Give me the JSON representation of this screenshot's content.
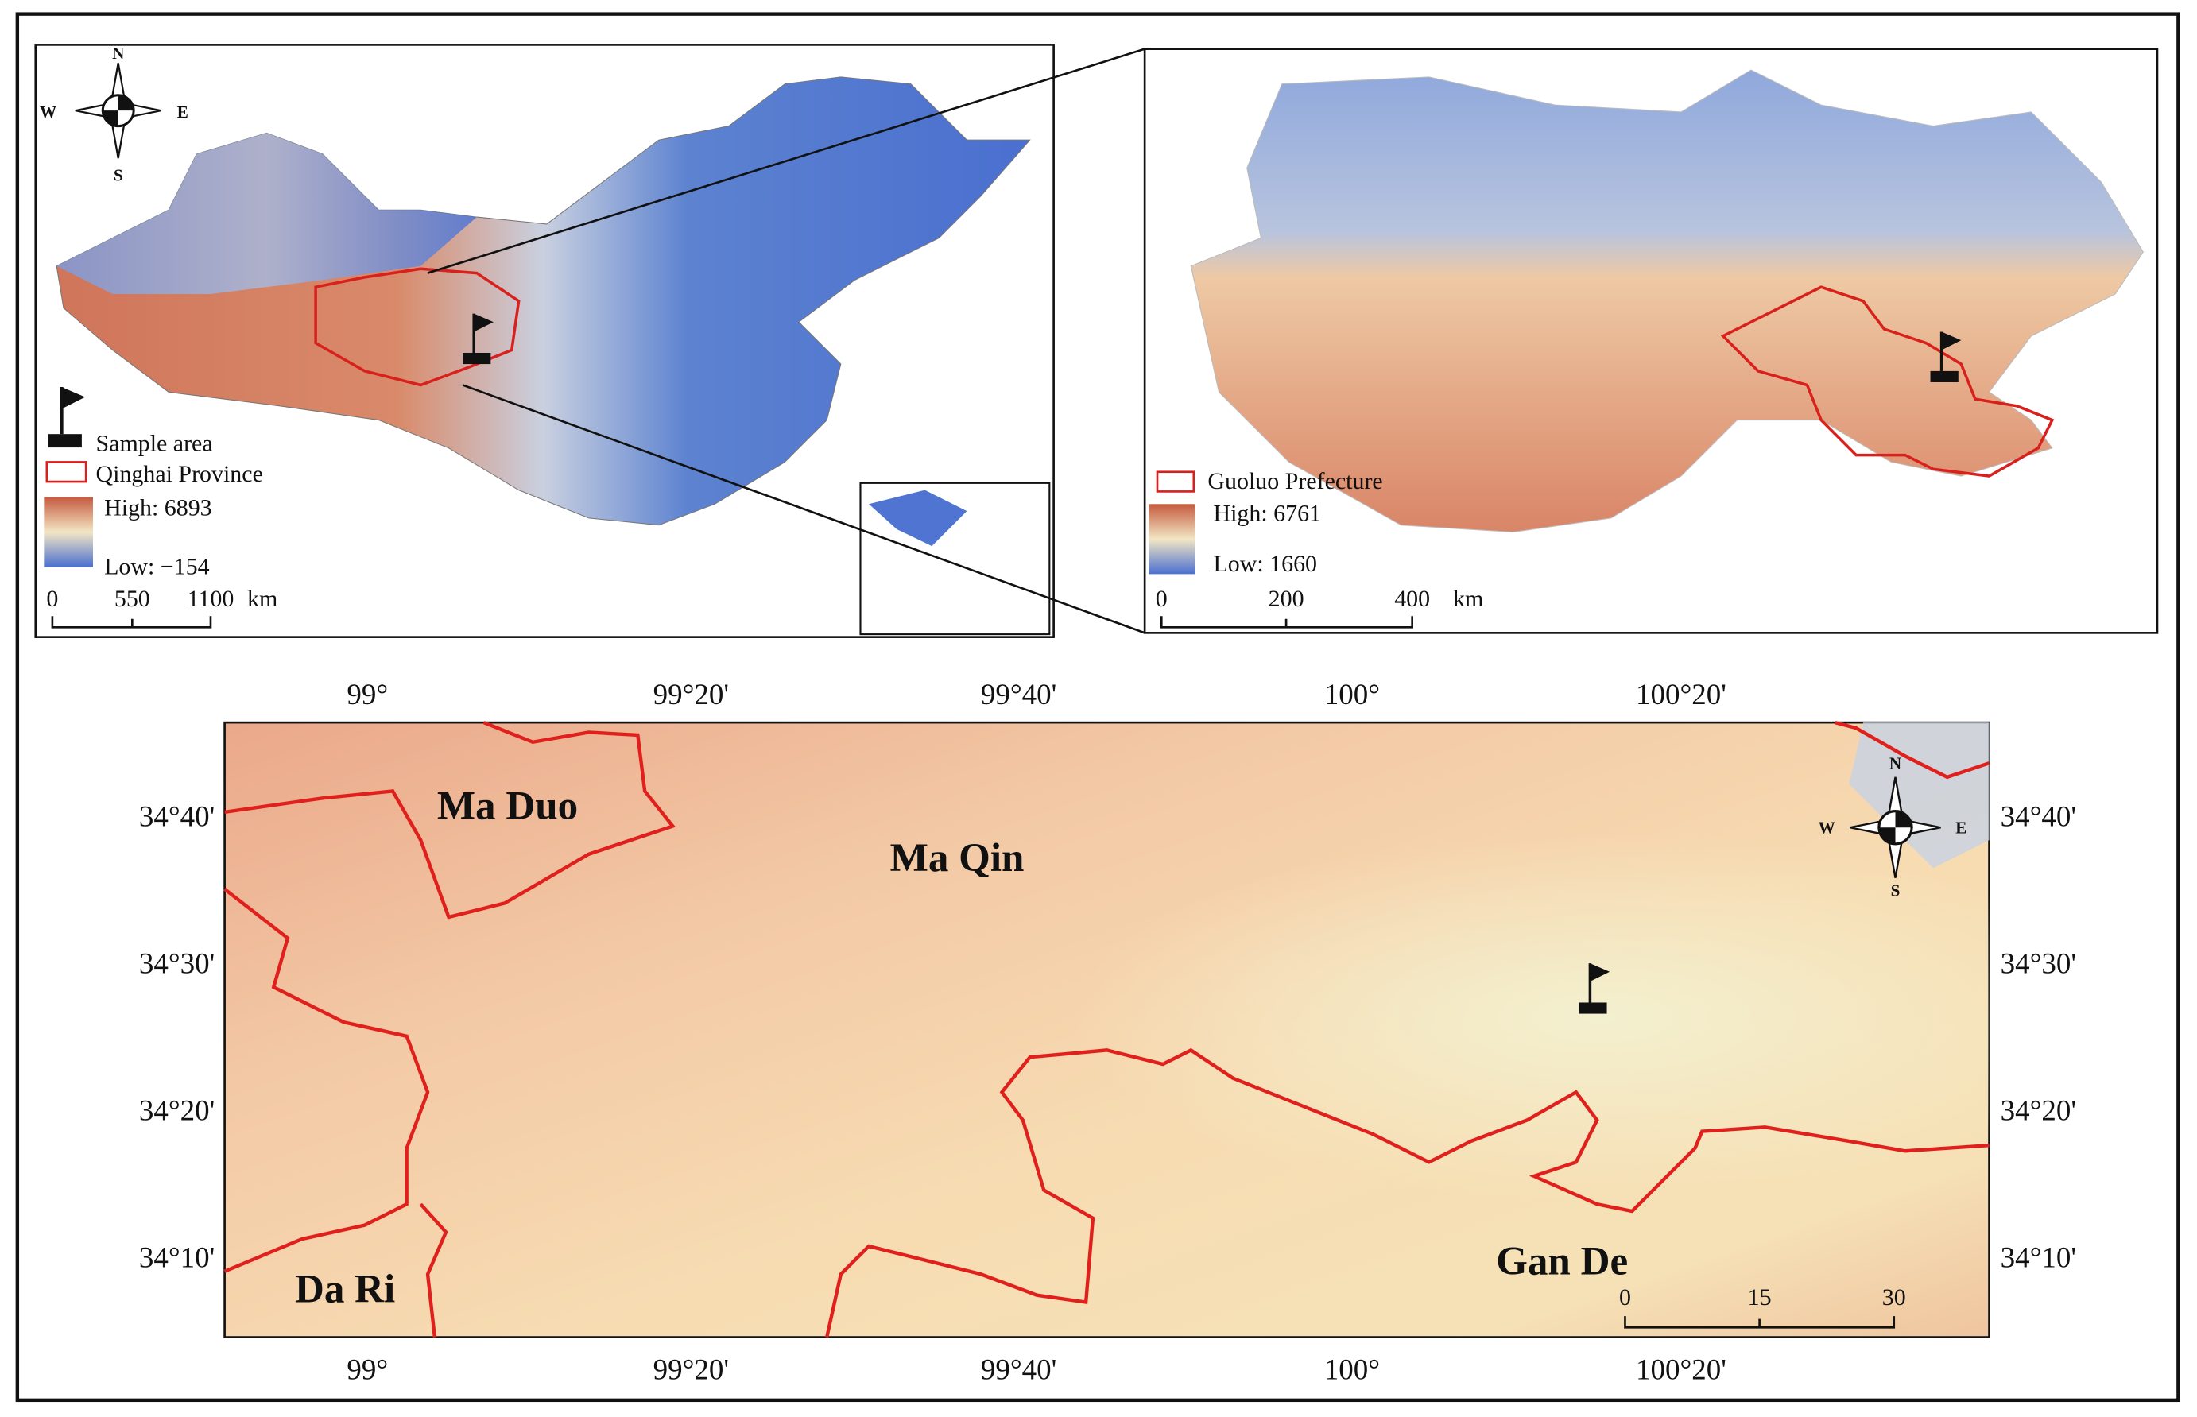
{
  "panel_a": {
    "compass": {
      "n": "N",
      "s": "S",
      "w": "W",
      "e": "E"
    },
    "legend": {
      "sample": "Sample area",
      "boundary": "Qinghai Province",
      "high": "High: 6893",
      "low": "Low: −154"
    },
    "scale": [
      "0",
      "550",
      "1100",
      "km"
    ]
  },
  "panel_b": {
    "legend": {
      "boundary": "Guoluo Prefecture",
      "high": "High: 6761",
      "low": "Low: 1660"
    },
    "scale": [
      "0",
      "200",
      "400",
      "km"
    ]
  },
  "panel_c": {
    "x_ticks": [
      "99°",
      "99°20'",
      "99°40'",
      "100°",
      "100°20'"
    ],
    "y_ticks": [
      "34°40'",
      "34°30'",
      "34°20'",
      "34°10'"
    ],
    "places": {
      "ma_duo": "Ma Duo",
      "ma_qin": "Ma Qin",
      "da_ri": "Da Ri",
      "gan_de": "Gan De"
    },
    "compass": {
      "n": "N",
      "s": "S",
      "w": "W",
      "e": "E"
    },
    "scale": [
      "0",
      "15",
      "30"
    ]
  }
}
